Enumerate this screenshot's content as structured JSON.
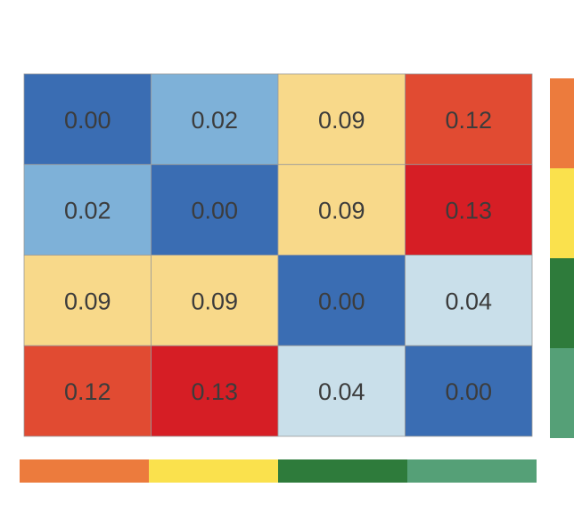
{
  "chart_data": {
    "type": "heatmap",
    "rows": 4,
    "cols": 4,
    "values": [
      [
        0.0,
        0.02,
        0.09,
        0.12
      ],
      [
        0.02,
        0.0,
        0.09,
        0.13
      ],
      [
        0.09,
        0.09,
        0.0,
        0.04
      ],
      [
        0.12,
        0.13,
        0.04,
        0.0
      ]
    ],
    "cell_colors": [
      [
        "#3a6db3",
        "#7eb1d8",
        "#f8d98a",
        "#e14b32"
      ],
      [
        "#7eb1d8",
        "#3a6db3",
        "#f8d98a",
        "#d61e25"
      ],
      [
        "#f8d98a",
        "#f8d98a",
        "#3a6db3",
        "#c9dfea"
      ],
      [
        "#e14b32",
        "#d61e25",
        "#c9dfea",
        "#3a6db3"
      ]
    ],
    "column_annotation_colors": [
      "#ec7b3d",
      "#fae14d",
      "#2e7b3b",
      "#55a077"
    ],
    "row_annotation_colors": [
      "#ec7b3d",
      "#fae14d",
      "#2e7b3b",
      "#55a077"
    ],
    "title": "",
    "xlabel": "",
    "ylabel": ""
  }
}
